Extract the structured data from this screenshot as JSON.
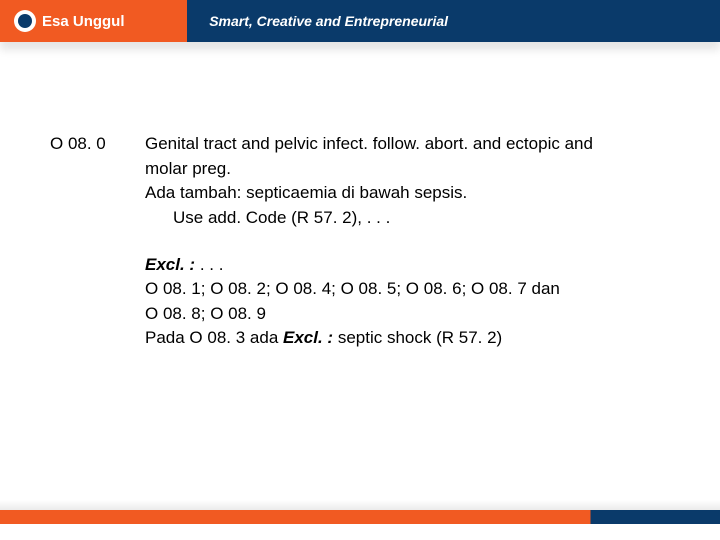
{
  "header": {
    "logo_text": "Esa Unggul",
    "tagline": "Smart, Creative and Entrepreneurial"
  },
  "entry": {
    "code": "O 08. 0",
    "title_line1": "Genital tract and pelvic infect. follow. abort. and ectopic and",
    "title_line2": "molar preg.",
    "note_line1": "Ada tambah: septicaemia di bawah sepsis.",
    "note_line2": "Use add. Code  (R 57. 2), . . .",
    "excl_label": "Excl. :",
    "excl_dots": " . . .",
    "codes_line1": "O 08. 1; O 08. 2;  O 08. 4;  O 08. 5;  O 08. 6; O 08. 7 dan",
    "codes_line2": "O 08. 8;  O 08. 9",
    "pada_prefix": "Pada O 08. 3  ada ",
    "pada_excl": "Excl. :",
    "pada_suffix": "  septic shock  (R 57. 2)"
  },
  "colors": {
    "orange": "#f15a22",
    "navy": "#0a3a6a",
    "text": "#000000",
    "bg": "#ffffff"
  }
}
